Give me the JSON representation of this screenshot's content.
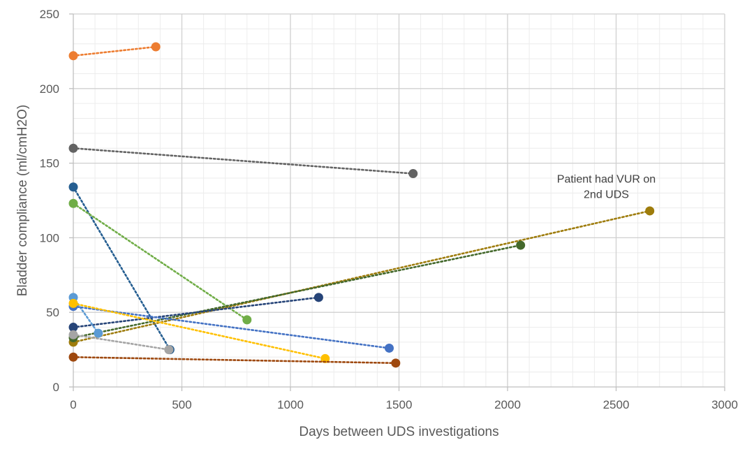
{
  "chart_data": {
    "type": "scatter",
    "title": "",
    "xlabel": "Days between UDS investigations",
    "ylabel": "Bladder compliance (ml/cmH2O)",
    "xlim": [
      0,
      3000
    ],
    "ylim": [
      0,
      250
    ],
    "xticks": [
      0,
      500,
      1000,
      1500,
      2000,
      2500,
      3000
    ],
    "yticks": [
      0,
      50,
      100,
      150,
      200,
      250
    ],
    "grid": true,
    "legend": "none",
    "series": [
      {
        "color": "#ED7D31",
        "points": [
          [
            0,
            222
          ],
          [
            380,
            228
          ]
        ]
      },
      {
        "color": "#636363",
        "points": [
          [
            0,
            160
          ],
          [
            1565,
            143
          ]
        ]
      },
      {
        "color": "#255E91",
        "points": [
          [
            0,
            134
          ],
          [
            445,
            25
          ]
        ]
      },
      {
        "color": "#70AD47",
        "points": [
          [
            0,
            123
          ],
          [
            800,
            45
          ]
        ]
      },
      {
        "color": "#9E7C0C",
        "points": [
          [
            0,
            30
          ],
          [
            2655,
            118
          ]
        ]
      },
      {
        "color": "#43682B",
        "points": [
          [
            0,
            33
          ],
          [
            2060,
            95
          ]
        ]
      },
      {
        "color": "#264478",
        "points": [
          [
            0,
            40
          ],
          [
            1130,
            60
          ]
        ]
      },
      {
        "color": "#5B9BD5",
        "points": [
          [
            0,
            60
          ],
          [
            115,
            36
          ]
        ]
      },
      {
        "color": "#4472C4",
        "points": [
          [
            0,
            54
          ],
          [
            1455,
            26
          ]
        ]
      },
      {
        "color": "#FFC000",
        "points": [
          [
            0,
            56
          ],
          [
            1160,
            19
          ]
        ]
      },
      {
        "color": "#A5A5A5",
        "points": [
          [
            0,
            35
          ],
          [
            440,
            25
          ]
        ]
      },
      {
        "color": "#9E480E",
        "points": [
          [
            0,
            20
          ],
          [
            1485,
            16
          ]
        ]
      }
    ],
    "annotations": [
      {
        "lines": [
          "Patient had VUR on",
          "2nd UDS"
        ],
        "x": 2455,
        "y": 137
      }
    ]
  }
}
